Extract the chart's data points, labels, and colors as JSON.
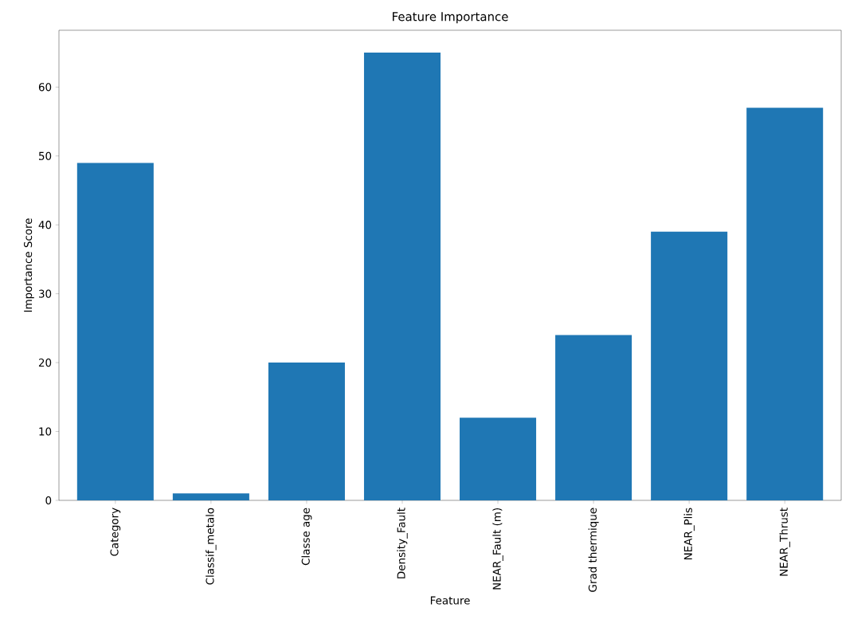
{
  "chart_data": {
    "type": "bar",
    "title": "Feature Importance",
    "xlabel": "Feature",
    "ylabel": "Importance Score",
    "categories": [
      "Category",
      "Classif_metalo",
      "Classe age",
      "Density_Fault",
      "NEAR_Fault (m)",
      "Grad thermique",
      "NEAR_Plis",
      "NEAR_Thrust"
    ],
    "values": [
      49,
      1,
      20,
      65,
      12,
      24,
      39,
      57
    ],
    "color": "#1f77b4",
    "ylim": [
      0,
      68.25
    ],
    "yticks": [
      0,
      10,
      20,
      30,
      40,
      50,
      60
    ]
  }
}
